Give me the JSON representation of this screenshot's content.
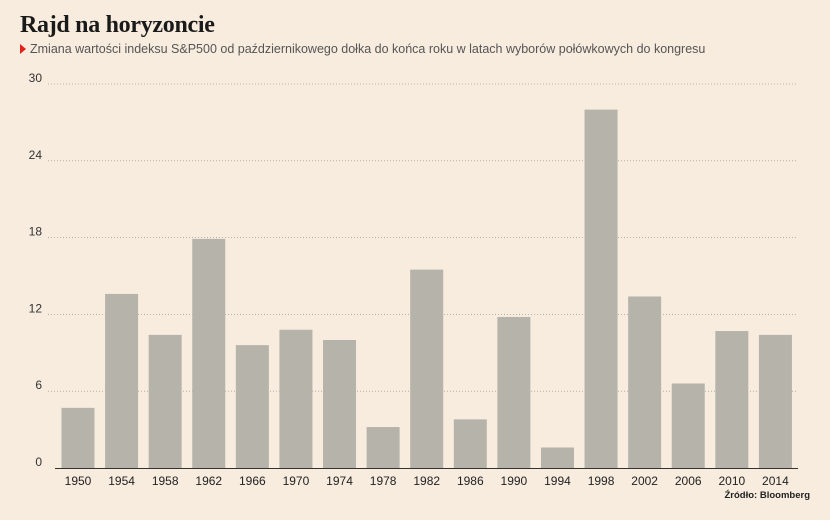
{
  "title": "Rajd na horyzoncie",
  "subtitle": "Zmiana wartości indeksu S&P500 od październikowego dołka do końca roku w latach wyborów połówkowych do kongresu",
  "source": "Źródło: Bloomberg",
  "colors": {
    "bar": "#b5b3aa",
    "background": "#f8ecde",
    "marker": "#e2231a"
  },
  "chart_data": {
    "type": "bar",
    "title": "Rajd na horyzoncie",
    "categories": [
      "1950",
      "1954",
      "1958",
      "1962",
      "1966",
      "1970",
      "1974",
      "1978",
      "1982",
      "1986",
      "1990",
      "1994",
      "1998",
      "2002",
      "2006",
      "2010",
      "2014"
    ],
    "values": [
      4.7,
      13.6,
      10.4,
      17.9,
      9.6,
      10.8,
      10.0,
      3.2,
      15.5,
      3.8,
      11.8,
      1.6,
      28.0,
      13.4,
      6.6,
      10.7,
      10.4
    ],
    "yticks": [
      0,
      6,
      12,
      18,
      24,
      30
    ],
    "ylim": [
      0,
      30
    ],
    "grid": true
  }
}
